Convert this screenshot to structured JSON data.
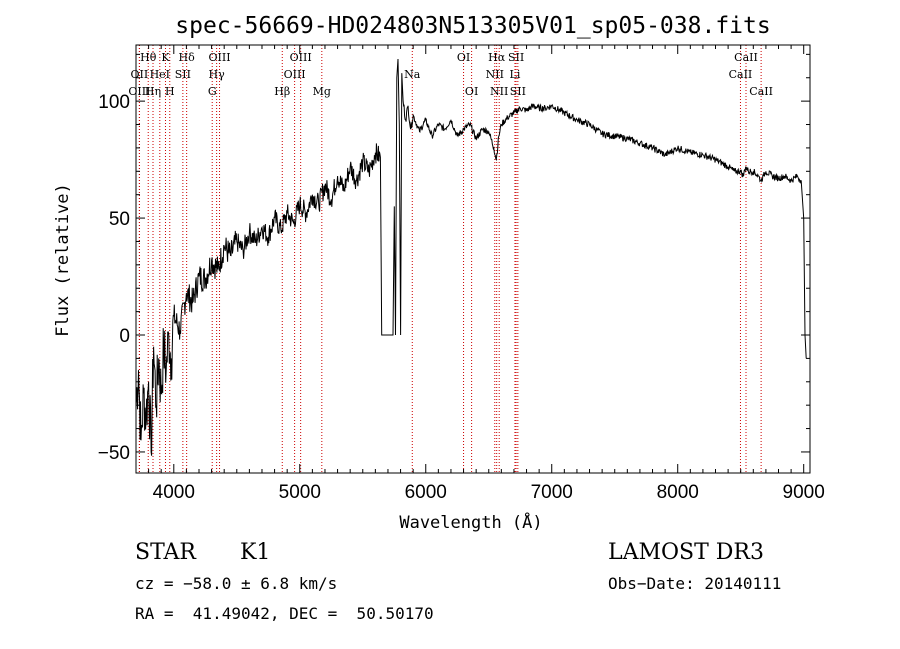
{
  "chart_data": {
    "type": "line",
    "title": "spec-56669-HD024803N513305V01_sp05-038.fits",
    "xlabel": "Wavelength (Å)",
    "ylabel": "Flux (relative)",
    "xlim": [
      3700,
      9050
    ],
    "ylim": [
      -59,
      124
    ],
    "xticks": [
      4000,
      5000,
      6000,
      7000,
      8000,
      9000
    ],
    "yticks": [
      -50,
      0,
      50,
      100
    ],
    "grid": false,
    "series": [
      {
        "name": "spectrum",
        "x": [
          3700,
          3720,
          3740,
          3760,
          3780,
          3800,
          3820,
          3840,
          3860,
          3880,
          3900,
          3920,
          3940,
          3960,
          3980,
          4000,
          4050,
          4100,
          4150,
          4200,
          4250,
          4300,
          4350,
          4400,
          4450,
          4500,
          4550,
          4600,
          4650,
          4700,
          4750,
          4800,
          4850,
          4900,
          4950,
          5000,
          5050,
          5100,
          5150,
          5200,
          5250,
          5300,
          5350,
          5400,
          5450,
          5500,
          5550,
          5600,
          5640,
          5650,
          5660,
          5700,
          5740,
          5750,
          5760,
          5770,
          5780,
          5790,
          5800,
          5810,
          5820,
          5840,
          5860,
          5880,
          5900,
          5950,
          6000,
          6050,
          6100,
          6150,
          6200,
          6250,
          6300,
          6350,
          6400,
          6450,
          6500,
          6540,
          6560,
          6580,
          6600,
          6650,
          6700,
          6750,
          6800,
          6850,
          6900,
          6950,
          7000,
          7100,
          7200,
          7300,
          7400,
          7500,
          7600,
          7700,
          7800,
          7900,
          8000,
          8100,
          8200,
          8300,
          8400,
          8450,
          8500,
          8520,
          8540,
          8560,
          8600,
          8640,
          8660,
          8680,
          8700,
          8750,
          8800,
          8850,
          8900,
          8950,
          8980,
          9000,
          9010,
          9020
        ],
        "values": [
          -30,
          -15,
          -45,
          -25,
          -35,
          -20,
          -50,
          -5,
          -30,
          -10,
          -25,
          -5,
          -15,
          0,
          -10,
          8,
          2,
          18,
          14,
          25,
          24,
          32,
          28,
          38,
          34,
          40,
          36,
          44,
          40,
          46,
          42,
          50,
          45,
          52,
          48,
          56,
          52,
          60,
          56,
          64,
          58,
          68,
          62,
          72,
          66,
          74,
          70,
          78,
          76,
          0,
          0,
          0,
          0,
          55,
          0,
          110,
          118,
          90,
          0,
          112,
          100,
          92,
          98,
          88,
          94,
          87,
          92,
          85,
          90,
          88,
          92,
          85,
          88,
          90,
          84,
          88,
          87,
          80,
          75,
          85,
          90,
          93,
          95,
          97,
          96,
          98,
          97,
          97,
          98,
          95,
          92,
          90,
          86,
          85,
          84,
          82,
          80,
          77,
          80,
          78,
          77,
          75,
          72,
          70,
          70,
          68,
          72,
          70,
          70,
          68,
          66,
          68,
          70,
          68,
          67,
          68,
          66,
          68,
          66,
          50,
          0,
          -10
        ]
      }
    ],
    "lines": [
      {
        "name": "Hθ",
        "wl": 3797,
        "row": 0
      },
      {
        "name": "OII",
        "wl": 3727,
        "row": 1
      },
      {
        "name": "OIII",
        "wl": 3727,
        "row": 2
      },
      {
        "name": "K",
        "wl": 3934,
        "row": 0
      },
      {
        "name": "HeI",
        "wl": 3889,
        "row": 1
      },
      {
        "name": "Hη",
        "wl": 3835,
        "row": 2
      },
      {
        "name": "Hδ",
        "wl": 4102,
        "row": 0
      },
      {
        "name": "SII",
        "wl": 4072,
        "row": 1
      },
      {
        "name": "H",
        "wl": 3968,
        "row": 2
      },
      {
        "name": "OIII",
        "wl": 4363,
        "row": 0
      },
      {
        "name": "Hγ",
        "wl": 4340,
        "row": 1
      },
      {
        "name": "G",
        "wl": 4305,
        "row": 2
      },
      {
        "name": "Hβ",
        "wl": 4861,
        "row": 2
      },
      {
        "name": "OIII",
        "wl": 5007,
        "row": 0
      },
      {
        "name": "OIII",
        "wl": 4959,
        "row": 1
      },
      {
        "name": "Mg",
        "wl": 5175,
        "row": 2
      },
      {
        "name": "Na",
        "wl": 5893,
        "row": 1
      },
      {
        "name": "OI",
        "wl": 6300,
        "row": 0
      },
      {
        "name": "OI",
        "wl": 6364,
        "row": 2
      },
      {
        "name": "Hα",
        "wl": 6563,
        "row": 0
      },
      {
        "name": "NII",
        "wl": 6548,
        "row": 1
      },
      {
        "name": "NII",
        "wl": 6583,
        "row": 2
      },
      {
        "name": "SII",
        "wl": 6717,
        "row": 0
      },
      {
        "name": "Li",
        "wl": 6708,
        "row": 1
      },
      {
        "name": "SII",
        "wl": 6731,
        "row": 2
      },
      {
        "name": "CaII",
        "wl": 8542,
        "row": 0
      },
      {
        "name": "CaII",
        "wl": 8498,
        "row": 1
      },
      {
        "name": "CaII",
        "wl": 8662,
        "row": 2
      }
    ],
    "colors": {
      "spectrum": "#000000",
      "lines": "#cc0000",
      "axes": "#000000"
    }
  },
  "info": {
    "object_class": "STAR",
    "subclass": "K1",
    "survey": "LAMOST DR3",
    "cz_line": "cz = −58.0 ± 6.8 km/s",
    "obs_date": "Obs−Date: 20140111",
    "coords": "RA =  41.49042, DEC =  50.50170"
  }
}
